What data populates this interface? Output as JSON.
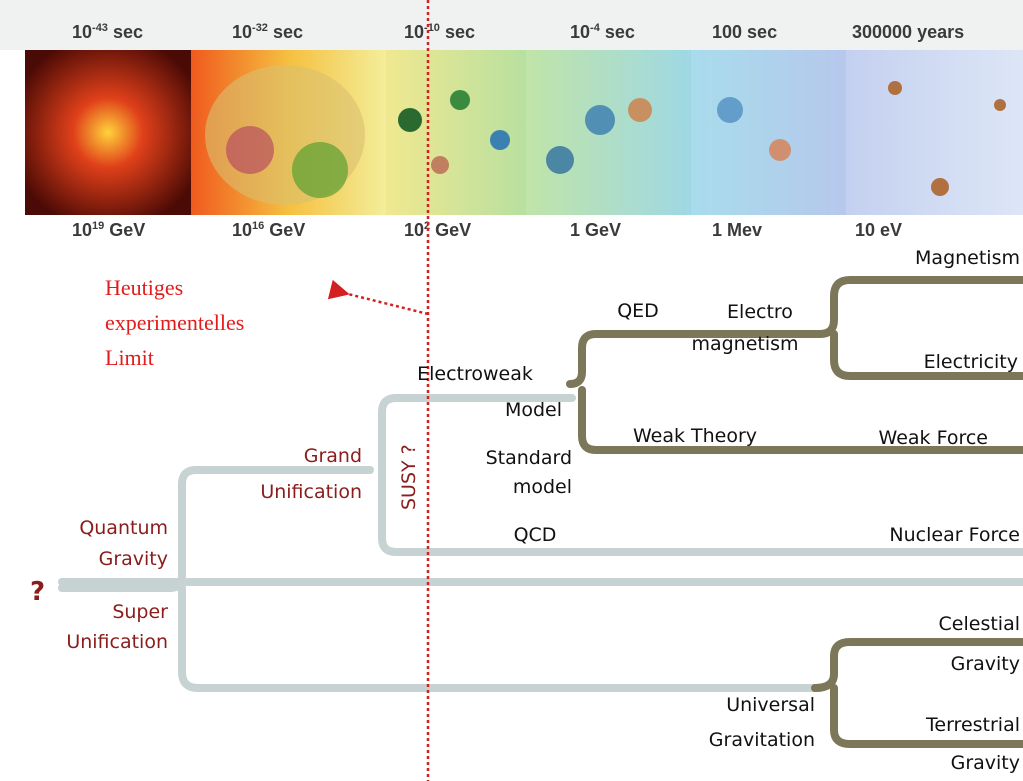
{
  "time_scale": [
    {
      "base": "10",
      "exponent": "-43",
      "unit": "sec"
    },
    {
      "base": "10",
      "exponent": "-32",
      "unit": "sec"
    },
    {
      "base": "10",
      "exponent": "-10",
      "unit": "sec"
    },
    {
      "base": "10",
      "exponent": "-4",
      "unit": "sec"
    },
    {
      "base": "100",
      "unit": "sec"
    },
    {
      "base": "300000",
      "unit": "years"
    }
  ],
  "energy_scale": [
    {
      "base": "10",
      "exponent": "19",
      "unit": "GeV"
    },
    {
      "base": "10",
      "exponent": "16",
      "unit": "GeV"
    },
    {
      "base": "10",
      "exponent": "2",
      "unit": "GeV"
    },
    {
      "base": "1",
      "unit": "GeV"
    },
    {
      "base": "1",
      "unit": "Mev"
    },
    {
      "base": "10",
      "unit": "eV"
    }
  ],
  "annotation": [
    "Heutiges",
    "experimentelles",
    "Limit"
  ],
  "nodes": {
    "question": "?",
    "quantum_gravity": [
      "Quantum",
      "Gravity"
    ],
    "super_unification": [
      "Super",
      "Unification"
    ],
    "grand_unification": [
      "Grand",
      "Unification"
    ],
    "susy": "SUSY ?",
    "electroweak": [
      "Electroweak",
      "Model"
    ],
    "standard_model": [
      "Standard",
      "model"
    ],
    "qed": "QED",
    "electromagnetism": [
      "Electro",
      "magnetism"
    ],
    "magnetism": "Magnetism",
    "electricity": "Electricity",
    "weak_theory": "Weak Theory",
    "weak_force": "Weak Force",
    "qcd": "QCD",
    "nuclear_force": "Nuclear Force",
    "universal_gravitation": [
      "Universal",
      "Gravitation"
    ],
    "celestial_gravity": [
      "Celestial",
      "Gravity"
    ],
    "terrestrial_gravity": [
      "Terrestrial",
      "Gravity"
    ]
  }
}
